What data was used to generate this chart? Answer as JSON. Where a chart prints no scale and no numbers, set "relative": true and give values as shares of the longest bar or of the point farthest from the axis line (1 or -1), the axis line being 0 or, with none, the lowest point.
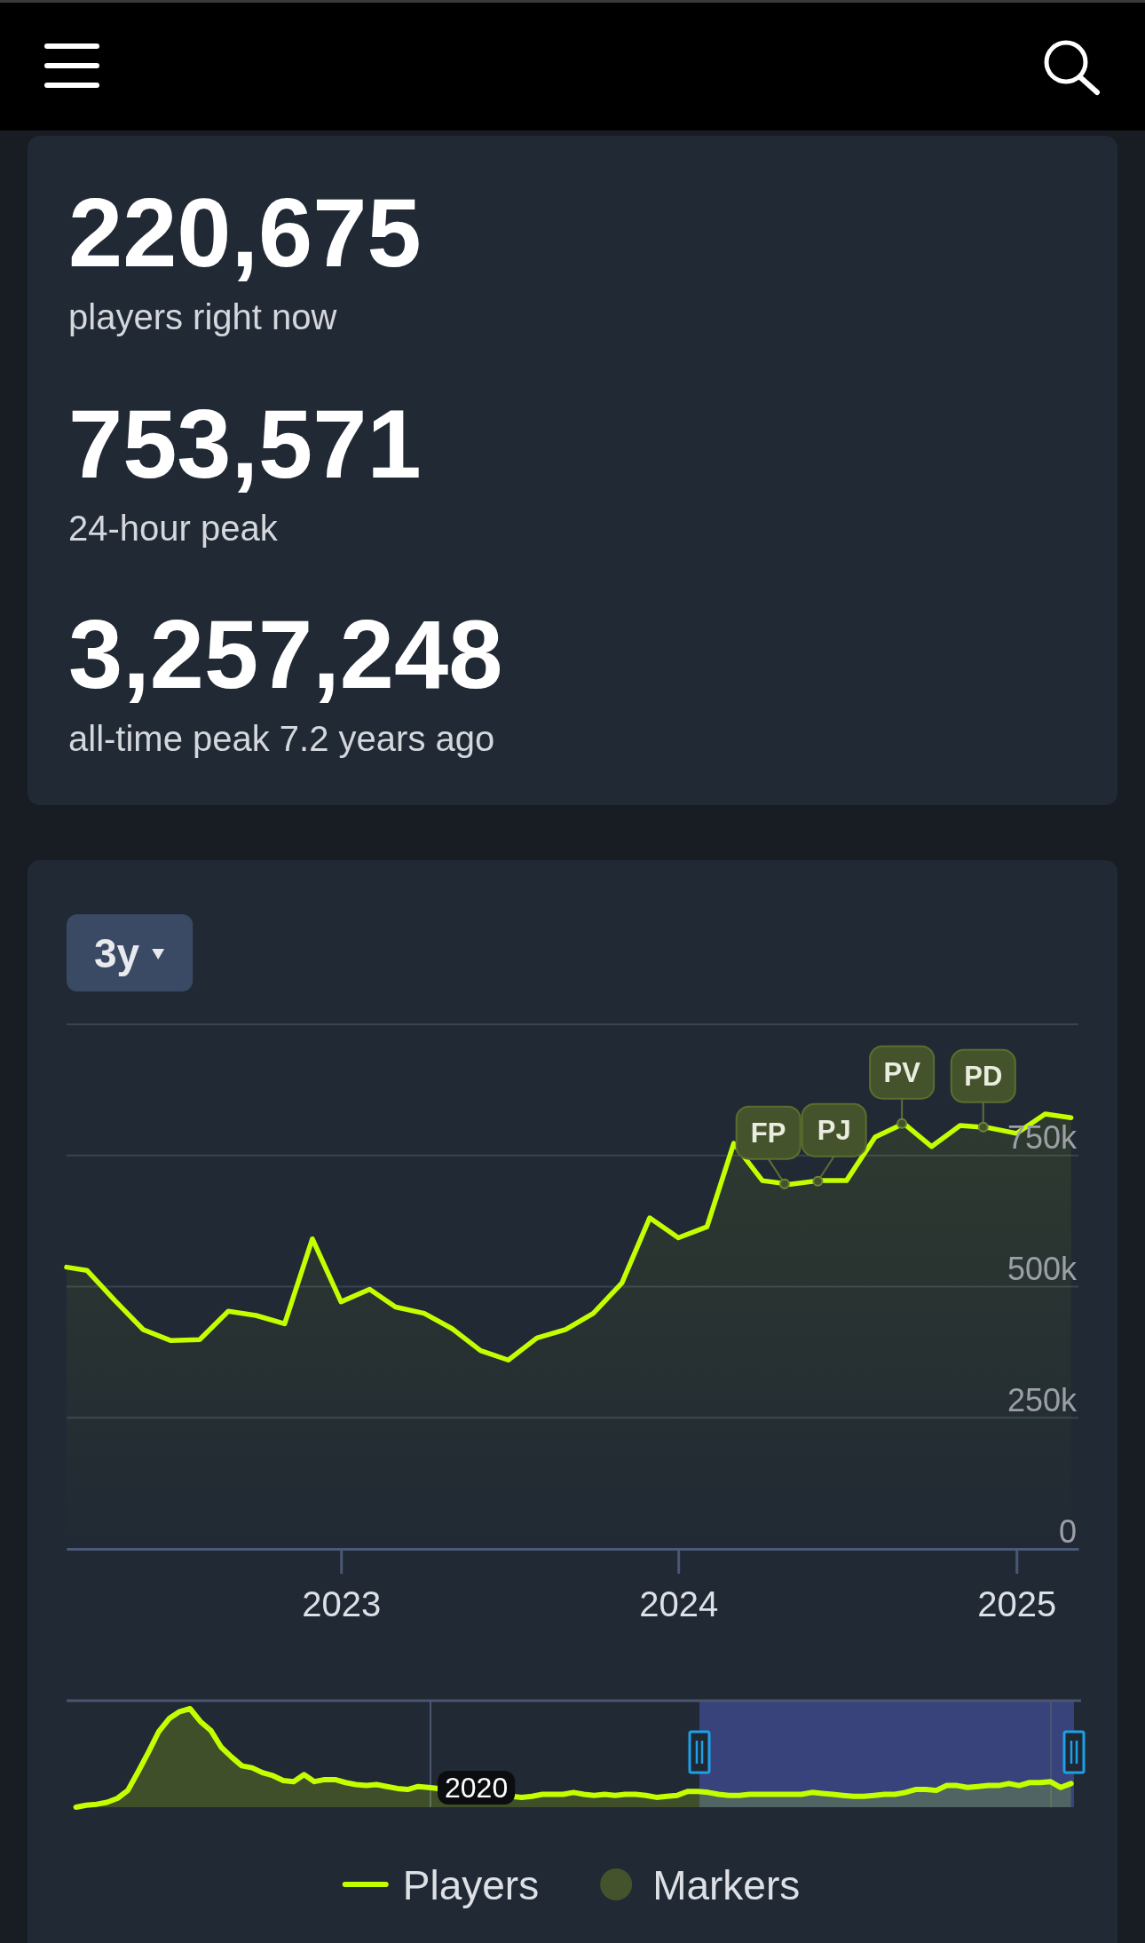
{
  "chart_data": [
    {
      "type": "other",
      "annotations": [
        "220,675",
        "players right now",
        "753,571",
        "24-hour peak",
        "3,257,248",
        "all-time peak 7.2 years ago"
      ]
    },
    {
      "type": "area",
      "annotations": [
        "3y"
      ],
      "x": [
        "2022-03-10",
        "2022-04-01",
        "2022-05-01",
        "2022-06-01",
        "2022-07-01",
        "2022-08-01",
        "2022-09-01",
        "2022-10-01",
        "2022-11-01",
        "2022-12-01",
        "2023-01-01",
        "2023-02-01",
        "2023-03-01",
        "2023-04-01",
        "2023-05-01",
        "2023-06-01",
        "2023-07-01",
        "2023-08-01",
        "2023-09-01",
        "2023-10-01",
        "2023-11-01",
        "2023-12-01",
        "2024-01-01",
        "2024-02-01",
        "2024-03-01",
        "2024-04-01",
        "2024-05-01",
        "2024-06-01",
        "2024-07-01",
        "2024-08-01",
        "2024-09-01",
        "2024-10-01",
        "2024-11-01",
        "2024-12-01",
        "2025-01-01",
        "2025-02-01",
        "2025-03-01"
      ],
      "series": [
        {
          "name": "Players",
          "type": "area",
          "color": "#c4ff00",
          "values": [
            537000,
            531000,
            474000,
            418000,
            397000,
            399000,
            453000,
            445000,
            429000,
            591000,
            471000,
            495000,
            461000,
            449000,
            420000,
            378000,
            360000,
            402000,
            418000,
            449000,
            507000,
            631000,
            593000,
            614000,
            773000,
            702000,
            695000,
            702000,
            702000,
            785000,
            811000,
            767000,
            807000,
            803000,
            792000,
            829000,
            822000
          ]
        },
        {
          "name": "Markers",
          "type": "scatter",
          "color": "#44532b",
          "x": [
            "2024-04-25",
            "2024-05-31",
            "2024-08-30",
            "2024-11-26"
          ],
          "values": [
            696000,
            701000,
            811000,
            804000
          ],
          "value_labels": [
            "FP",
            "PJ",
            "PV",
            "PD"
          ]
        }
      ],
      "xlim": [
        "2022-03-10",
        "2025-03-09"
      ],
      "xticks": [
        {
          "value": "2023-01-01",
          "label": "2023"
        },
        {
          "value": "2024-01-01",
          "label": "2024"
        },
        {
          "value": "2025-01-01",
          "label": "2025"
        }
      ],
      "ylim": [
        0,
        1000000
      ],
      "yticks": [
        0,
        {
          "value": 250000,
          "label": "250k"
        },
        {
          "value": 500000,
          "label": "500k"
        },
        {
          "value": 750000,
          "label": "750k"
        },
        {
          "value": 1000000,
          "label": null
        }
      ],
      "grid": "y",
      "legend": "bottom"
    },
    {
      "type": "area",
      "relative": true,
      "annotations": [
        "2020"
      ],
      "categories": [
        null,
        null,
        null,
        null,
        null,
        null,
        null,
        null,
        null,
        null,
        null,
        null,
        null,
        null,
        null,
        null,
        null,
        null,
        null,
        null,
        null,
        null,
        null,
        null,
        null,
        null,
        null,
        null,
        null,
        null,
        null,
        null,
        null,
        null,
        null,
        null,
        null,
        null,
        null,
        null,
        null,
        null,
        null,
        null,
        null,
        null,
        null,
        null,
        null,
        null,
        null,
        null,
        null,
        null,
        null,
        null,
        null,
        null,
        null,
        null,
        null,
        null,
        null,
        null,
        null,
        null,
        null,
        null,
        null,
        null,
        null,
        null,
        null,
        null,
        null,
        null,
        null,
        null,
        null,
        null,
        null,
        null,
        null,
        null,
        null,
        null,
        null,
        null,
        null,
        null,
        null,
        null,
        null,
        null,
        null,
        null,
        null
      ],
      "series": [
        {
          "color": "#c4ff00",
          "values": [
            0,
            0.02,
            0.03,
            0.05,
            0.09,
            0.17,
            0.36,
            0.56,
            0.77,
            0.9,
            0.97,
            1,
            0.87,
            0.78,
            0.61,
            0.51,
            0.42,
            0.4,
            0.35,
            0.32,
            0.27,
            0.26,
            0.33,
            0.26,
            0.28,
            0.28,
            0.25,
            0.23,
            0.22,
            0.23,
            0.21,
            0.19,
            0.18,
            0.21,
            0.2,
            null,
            null,
            null,
            null,
            null,
            null,
            null,
            null,
            0.1,
            0.11,
            0.13,
            0.13,
            0.13,
            0.15,
            0.13,
            0.12,
            0.13,
            0.12,
            0.13,
            0.13,
            0.12,
            0.1,
            0.11,
            0.12,
            0.16,
            0.16,
            0.15,
            0.13,
            0.12,
            0.12,
            0.13,
            0.13,
            0.13,
            0.13,
            0.13,
            0.13,
            0.15,
            0.14,
            0.13,
            0.12,
            0.11,
            0.11,
            0.12,
            0.13,
            0.13,
            0.15,
            0.18,
            0.18,
            0.17,
            0.22,
            0.22,
            0.2,
            0.21,
            0.22,
            0.22,
            0.24,
            0.22,
            0.25,
            0.25,
            0.26,
            0.2,
            0.24
          ]
        }
      ]
    }
  ]
}
